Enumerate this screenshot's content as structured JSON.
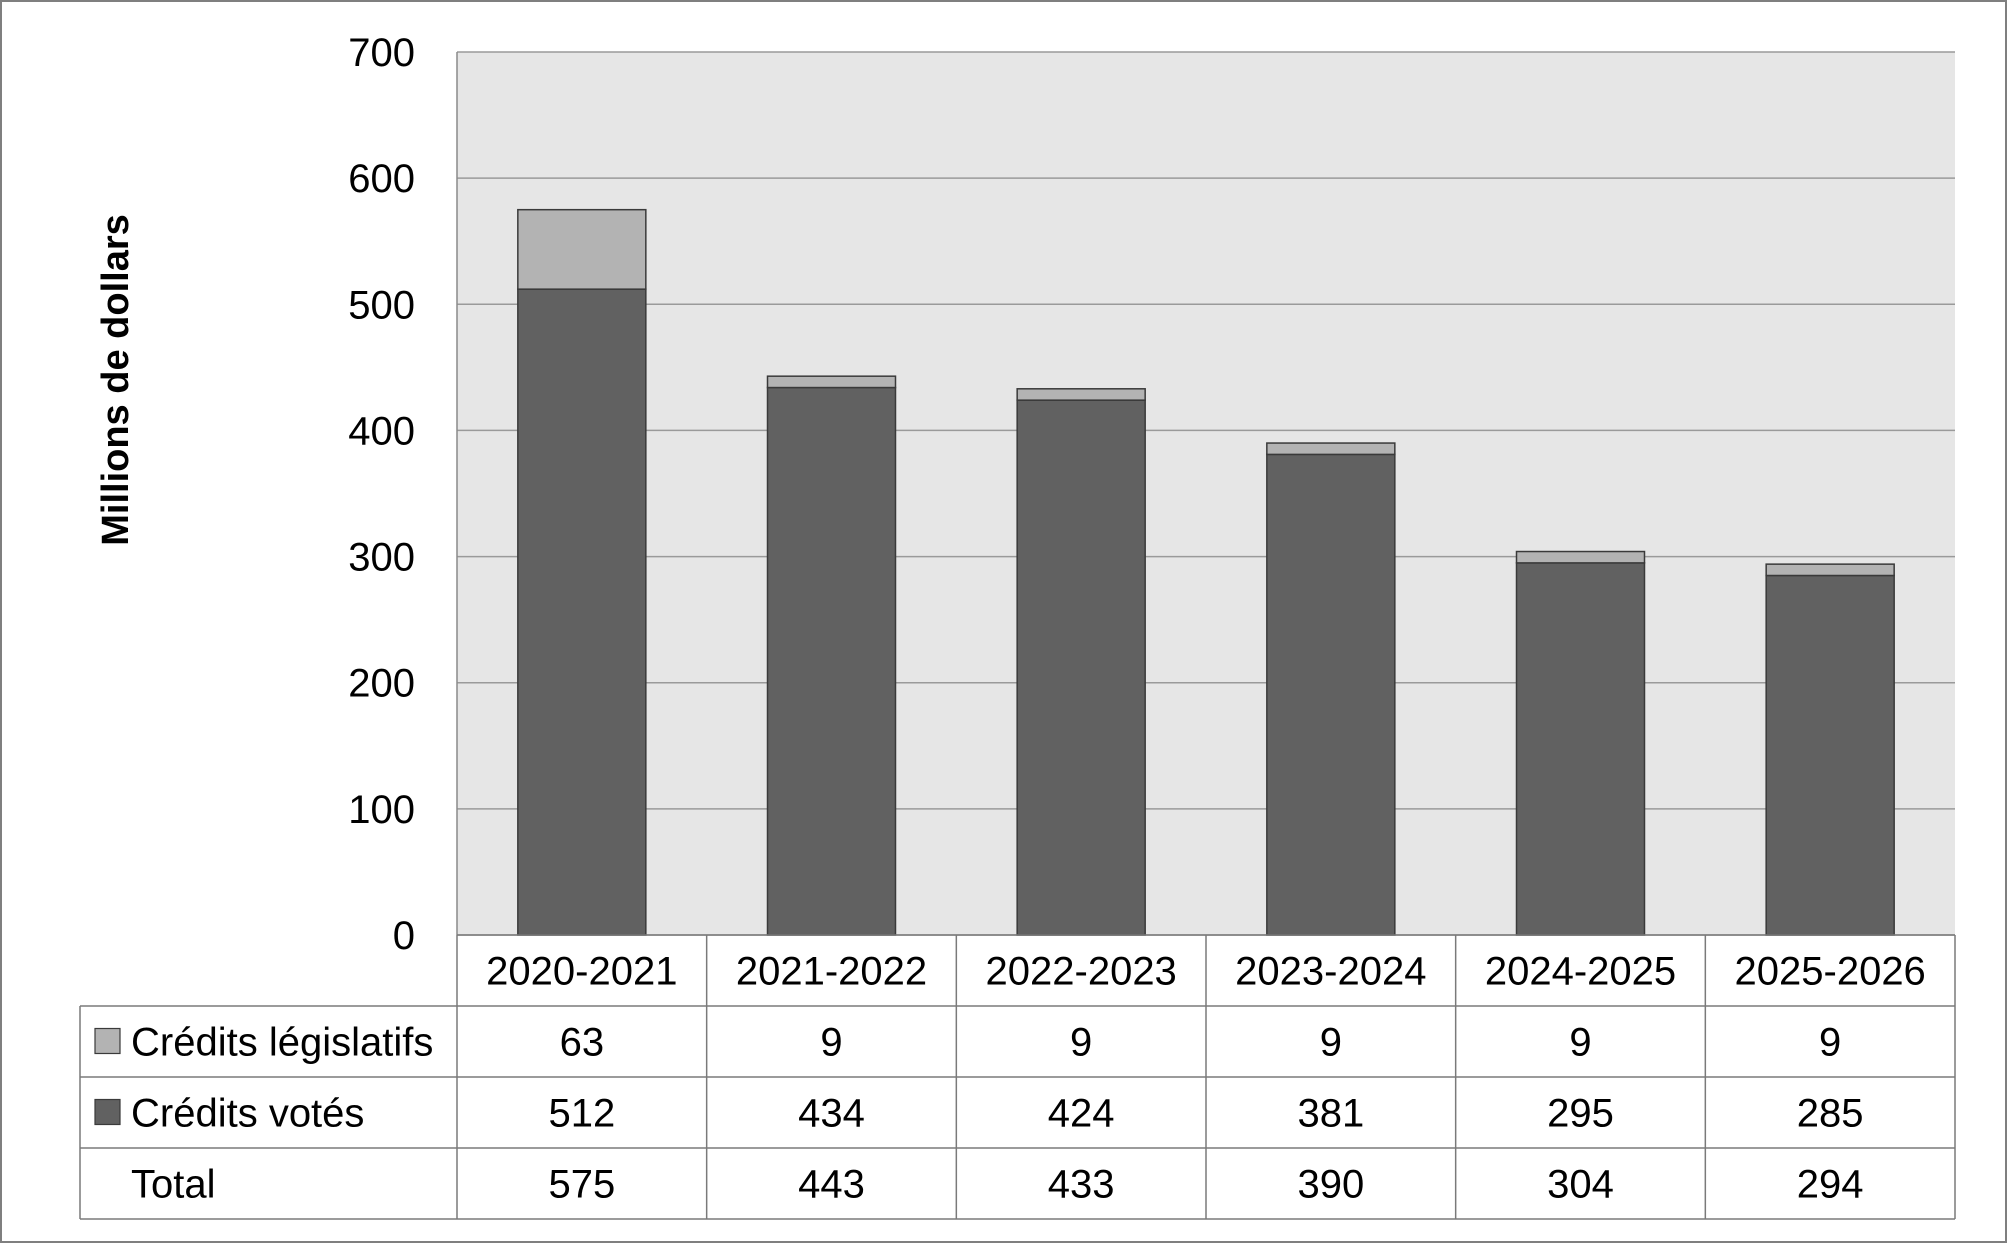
{
  "chart_data": {
    "type": "bar",
    "stacked": true,
    "categories": [
      "2020-2021",
      "2021-2022",
      "2022-2023",
      "2023-2024",
      "2024-2025",
      "2025-2026"
    ],
    "series": [
      {
        "name": "Crédits votés",
        "values": [
          512,
          434,
          424,
          381,
          295,
          285
        ],
        "color": "#616161"
      },
      {
        "name": "Crédits législatifs",
        "values": [
          63,
          9,
          9,
          9,
          9,
          9
        ],
        "color": "#b3b3b3"
      }
    ],
    "totals": {
      "name": "Total",
      "values": [
        575,
        443,
        433,
        390,
        304,
        294
      ]
    },
    "title": "",
    "xlabel": "",
    "ylabel": "Millions de dollars",
    "ylim": [
      0,
      700
    ],
    "yticks": [
      0,
      100,
      200,
      300,
      400,
      500,
      600,
      700
    ],
    "grid": true,
    "legend": "data-table-below",
    "colors": {
      "plot_background": "#e6e6e6",
      "gridline": "#9a9a9a",
      "bar_outline": "#3a3a3a"
    }
  }
}
